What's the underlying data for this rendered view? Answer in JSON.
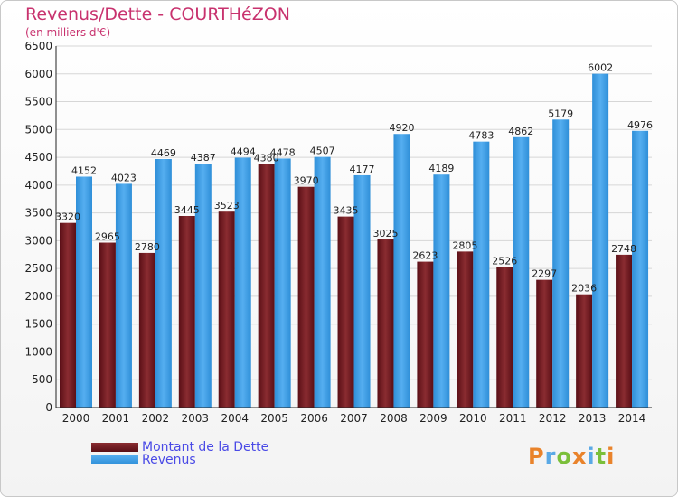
{
  "header": {
    "title": "Revenus/Dette - COURTHéZON",
    "subtitle": "(en milliers d'€)"
  },
  "chart_data": {
    "type": "bar",
    "categories": [
      "2000",
      "2001",
      "2002",
      "2003",
      "2004",
      "2005",
      "2006",
      "2007",
      "2008",
      "2009",
      "2010",
      "2011",
      "2012",
      "2013",
      "2014"
    ],
    "series": [
      {
        "name": "Montant de la Dette",
        "color": "#7a2228",
        "values": [
          3320,
          2965,
          2780,
          3445,
          3523,
          4380,
          3970,
          3435,
          3025,
          2623,
          2805,
          2526,
          2297,
          2036,
          2748
        ],
        "labels": [
          "3320",
          "2965",
          "2780",
          "3445",
          "3523",
          "4380",
          "3970",
          "3435",
          "3025",
          "2623",
          "2805",
          "2526",
          "2297",
          "2036",
          "2748"
        ]
      },
      {
        "name": "Revenus",
        "color": "#3d9be3",
        "values": [
          4152,
          4023,
          4469,
          4387,
          4494,
          4478,
          4507,
          4177,
          4920,
          4189,
          4783,
          4862,
          5179,
          6002,
          4976
        ],
        "labels": [
          "4152",
          "4023",
          "4469",
          "4387",
          "4494",
          "4478",
          "4507",
          "4177",
          "4920",
          "4189",
          "4783",
          "4862",
          "5179",
          "6002",
          "4976"
        ]
      }
    ],
    "yticks": [
      "0",
      "500",
      "1000",
      "1500",
      "2000",
      "2500",
      "3000",
      "3500",
      "4000",
      "4500",
      "5000",
      "5500",
      "6000",
      "6500"
    ],
    "ylim": [
      0,
      6500
    ],
    "grid": true,
    "legend_position": "bottom-left"
  },
  "legend": {
    "debt_label": "Montant de la Dette",
    "revenue_label": "Revenus"
  },
  "logo": {
    "text": "Proxiti",
    "letters": [
      {
        "ch": "P",
        "color": "#e9832b"
      },
      {
        "ch": "r",
        "color": "#5aa9e6"
      },
      {
        "ch": "o",
        "color": "#7bbf3a"
      },
      {
        "ch": "x",
        "color": "#e9832b"
      },
      {
        "ch": "i",
        "color": "#5aa9e6"
      },
      {
        "ch": "t",
        "color": "#7bbf3a"
      },
      {
        "ch": "i",
        "color": "#e9832b"
      }
    ]
  }
}
